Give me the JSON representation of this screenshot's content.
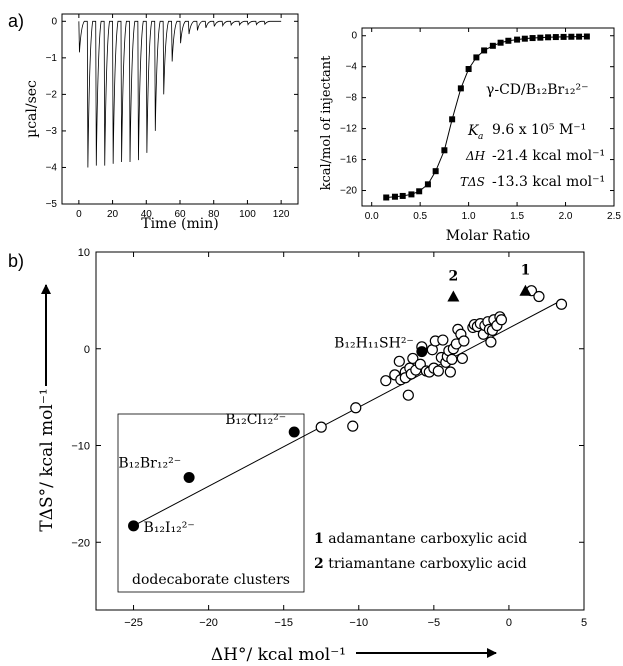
{
  "panel_labels": [
    "a)",
    "b)"
  ],
  "chart_data": [
    {
      "type": "line",
      "panel": "a-left",
      "xlabel": "Time (min)",
      "ylabel": "µcal/sec",
      "xlim": [
        -10,
        130
      ],
      "ylim": [
        -5,
        0.2
      ],
      "xticks": [
        0,
        20,
        40,
        60,
        80,
        100,
        120
      ],
      "yticks": [
        0,
        -1,
        -2,
        -3,
        -4,
        -5
      ],
      "baseline": 0,
      "injections": [
        {
          "t": 0,
          "peak": -0.85
        },
        {
          "t": 5,
          "peak": -4.0
        },
        {
          "t": 10,
          "peak": -3.95
        },
        {
          "t": 15,
          "peak": -3.95
        },
        {
          "t": 20,
          "peak": -3.9
        },
        {
          "t": 25,
          "peak": -3.85
        },
        {
          "t": 30,
          "peak": -3.85
        },
        {
          "t": 35,
          "peak": -3.8
        },
        {
          "t": 40,
          "peak": -3.6
        },
        {
          "t": 45,
          "peak": -3.0
        },
        {
          "t": 50,
          "peak": -2.0
        },
        {
          "t": 55,
          "peak": -1.1
        },
        {
          "t": 60,
          "peak": -0.6
        },
        {
          "t": 65,
          "peak": -0.35
        },
        {
          "t": 70,
          "peak": -0.25
        },
        {
          "t": 75,
          "peak": -0.18
        },
        {
          "t": 80,
          "peak": -0.14
        },
        {
          "t": 85,
          "peak": -0.12
        },
        {
          "t": 90,
          "peak": -0.1
        },
        {
          "t": 95,
          "peak": -0.1
        },
        {
          "t": 100,
          "peak": -0.09
        },
        {
          "t": 105,
          "peak": -0.09
        },
        {
          "t": 110,
          "peak": -0.08
        }
      ],
      "end_time": 120
    },
    {
      "type": "scatter",
      "panel": "a-right",
      "xlabel": "Molar Ratio",
      "ylabel": "kcal/mol of injectant",
      "xlim": [
        -0.1,
        2.5
      ],
      "ylim": [
        -22,
        1
      ],
      "xticks": [
        0.0,
        0.5,
        1.0,
        1.5,
        2.0,
        2.5
      ],
      "yticks": [
        0,
        -4,
        -8,
        -12,
        -16,
        -20
      ],
      "points": [
        [
          0.15,
          -20.9
        ],
        [
          0.24,
          -20.8
        ],
        [
          0.32,
          -20.7
        ],
        [
          0.41,
          -20.5
        ],
        [
          0.49,
          -20.1
        ],
        [
          0.58,
          -19.2
        ],
        [
          0.66,
          -17.5
        ],
        [
          0.75,
          -14.8
        ],
        [
          0.83,
          -10.8
        ],
        [
          0.92,
          -6.8
        ],
        [
          1.0,
          -4.3
        ],
        [
          1.08,
          -2.8
        ],
        [
          1.16,
          -1.9
        ],
        [
          1.25,
          -1.3
        ],
        [
          1.33,
          -0.9
        ],
        [
          1.41,
          -0.65
        ],
        [
          1.5,
          -0.5
        ],
        [
          1.58,
          -0.38
        ],
        [
          1.66,
          -0.3
        ],
        [
          1.74,
          -0.25
        ],
        [
          1.82,
          -0.2
        ],
        [
          1.9,
          -0.17
        ],
        [
          1.98,
          -0.15
        ],
        [
          2.06,
          -0.13
        ],
        [
          2.14,
          -0.12
        ],
        [
          2.22,
          -0.1
        ]
      ],
      "fit_line": true,
      "annotations": {
        "system": "γ-CD/B₁₂Br₁₂²⁻",
        "ka_label": "K",
        "ka_sub": "a",
        "ka_value": "9.6 x 10⁵ M⁻¹",
        "dh_label": "ΔH",
        "dh_value": "-21.4 kcal mol⁻¹",
        "tds_label": "TΔS",
        "tds_value": "-13.3 kcal mol⁻¹"
      }
    },
    {
      "type": "scatter",
      "panel": "b",
      "xlabel": "ΔH°/ kcal mol⁻¹",
      "ylabel": "TΔS°/ kcal mol⁻¹",
      "xlim": [
        -27.5,
        5
      ],
      "ylim": [
        -27,
        10
      ],
      "xticks": [
        -25,
        -20,
        -15,
        -10,
        -5,
        0,
        5
      ],
      "yticks": [
        10,
        0,
        -10,
        -20
      ],
      "fit_line": [
        [
          -25,
          -18.3
        ],
        [
          3.5,
          5.0
        ]
      ],
      "open_points": [
        [
          -12.5,
          -8.1
        ],
        [
          -10.4,
          -8.0
        ],
        [
          -10.2,
          -6.1
        ],
        [
          -8.2,
          -3.3
        ],
        [
          -7.6,
          -2.7
        ],
        [
          -7.3,
          -1.3
        ],
        [
          -7.2,
          -3.2
        ],
        [
          -6.9,
          -2.4
        ],
        [
          -6.9,
          -3.0
        ],
        [
          -6.7,
          -4.8
        ],
        [
          -6.6,
          -2.0
        ],
        [
          -6.5,
          -2.6
        ],
        [
          -6.4,
          -1.0
        ],
        [
          -6.2,
          -2.2
        ],
        [
          -5.9,
          -1.6
        ],
        [
          -5.8,
          0.2
        ],
        [
          -5.5,
          -2.3
        ],
        [
          -5.3,
          -2.4
        ],
        [
          -5.1,
          -0.1
        ],
        [
          -5.0,
          -2.0
        ],
        [
          -4.9,
          0.8
        ],
        [
          -4.7,
          -2.3
        ],
        [
          -4.5,
          -0.9
        ],
        [
          -4.4,
          0.9
        ],
        [
          -4.2,
          -1.4
        ],
        [
          -4.1,
          -0.8
        ],
        [
          -4.0,
          -0.2
        ],
        [
          -3.9,
          -2.4
        ],
        [
          -3.8,
          -1.1
        ],
        [
          -3.7,
          0.0
        ],
        [
          -3.5,
          0.5
        ],
        [
          -3.4,
          2.0
        ],
        [
          -3.2,
          1.5
        ],
        [
          -3.1,
          -1.0
        ],
        [
          -3.0,
          0.8
        ],
        [
          -2.4,
          2.2
        ],
        [
          -2.3,
          2.5
        ],
        [
          -2.1,
          2.3
        ],
        [
          -1.9,
          2.6
        ],
        [
          -1.7,
          1.5
        ],
        [
          -1.6,
          2.4
        ],
        [
          -1.4,
          2.8
        ],
        [
          -1.3,
          2.0
        ],
        [
          -1.2,
          0.7
        ],
        [
          -1.1,
          1.9
        ],
        [
          -1.0,
          3.0
        ],
        [
          -0.8,
          2.4
        ],
        [
          -0.6,
          3.3
        ],
        [
          -0.5,
          3.0
        ],
        [
          1.5,
          6.0
        ],
        [
          2.0,
          5.4
        ],
        [
          3.5,
          4.6
        ]
      ],
      "filled_points": [
        {
          "x": -25.0,
          "y": -18.3,
          "label": "B₁₂I₁₂²⁻"
        },
        {
          "x": -21.3,
          "y": -13.3,
          "label": "B₁₂Br₁₂²⁻"
        },
        {
          "x": -14.3,
          "y": -8.6,
          "label": "B₁₂Cl₁₂²⁻"
        },
        {
          "x": -5.8,
          "y": -0.3,
          "label": "B₁₂H₁₁SH²⁻"
        }
      ],
      "triangle_points": [
        {
          "x": 1.1,
          "y": 6.0,
          "label": "1"
        },
        {
          "x": -3.7,
          "y": 5.4,
          "label": "2"
        }
      ],
      "inset_caption": "dodecaborate clusters",
      "legend": [
        {
          "num": "1",
          "text": " adamantane carboxylic acid"
        },
        {
          "num": "2",
          "text": " triamantane carboxylic acid"
        }
      ]
    }
  ]
}
